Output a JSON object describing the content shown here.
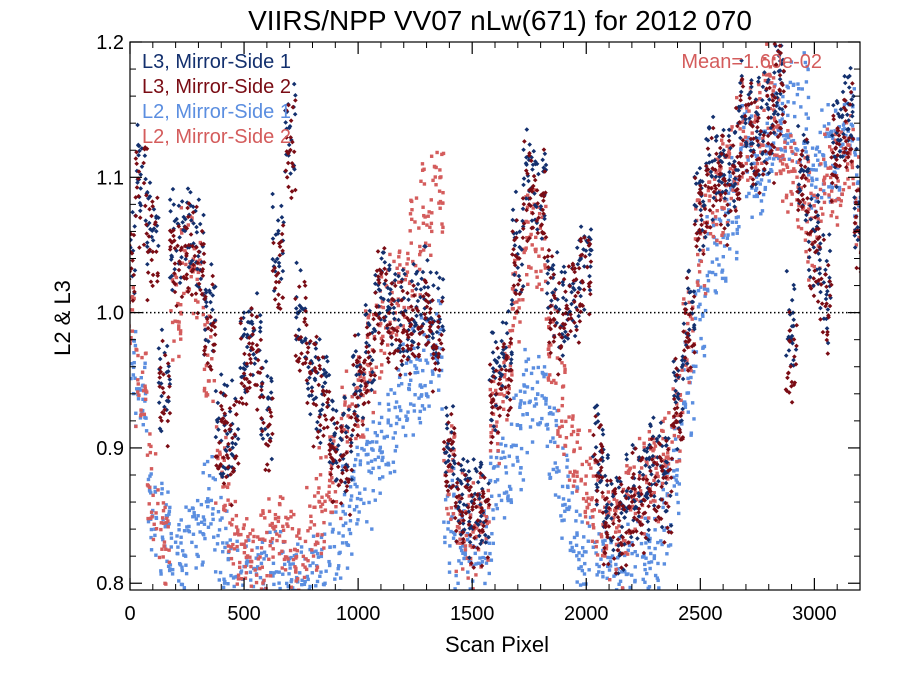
{
  "chart_data": {
    "type": "scatter",
    "title": "VIIRS/NPP VV07 nLw(671) for 2012 070",
    "xlabel": "Scan Pixel",
    "ylabel": "L2 & L3",
    "xlim": [
      0,
      3200
    ],
    "ylim": [
      0.795,
      1.2
    ],
    "xticks": [
      0,
      500,
      1000,
      1500,
      2000,
      2500,
      3000
    ],
    "xtick_labels": [
      "0",
      "500",
      "1000",
      "1500",
      "2000",
      "2500",
      "3000"
    ],
    "yticks": [
      0.8,
      0.9,
      1.0,
      1.1,
      1.2
    ],
    "ytick_labels": [
      "0.8",
      "0.9",
      "1.0",
      "1.1",
      "1.2"
    ],
    "reference_line": {
      "y": 1.0,
      "style": "dotted",
      "color": "#000000"
    },
    "annotation": "Mean=1.60e-02",
    "legend_position": "top-left",
    "series": [
      {
        "name": "L3, Mirror-Side 1",
        "color": "#13306e",
        "marker": "diamond",
        "x": [
          0,
          50,
          100,
          150,
          200,
          250,
          300,
          350,
          400,
          450,
          500,
          550,
          600,
          650,
          700,
          750,
          800,
          850,
          900,
          950,
          1000,
          1050,
          1100,
          1150,
          1200,
          1250,
          1300,
          1350,
          1400,
          1450,
          1500,
          1550,
          1600,
          1650,
          1700,
          1750,
          1800,
          1850,
          1900,
          1950,
          2000,
          2050,
          2100,
          2150,
          2200,
          2250,
          2300,
          2350,
          2400,
          2450,
          2500,
          2550,
          2600,
          2650,
          2700,
          2750,
          2800,
          2850,
          2900,
          2950,
          3000,
          3050,
          3100,
          3150,
          3200
        ],
        "y": [
          1.04,
          1.1,
          1.06,
          0.95,
          1.05,
          1.06,
          1.05,
          1.0,
          0.92,
          0.91,
          0.97,
          0.98,
          0.93,
          1.05,
          1.13,
          1.0,
          0.95,
          0.94,
          0.9,
          0.9,
          0.95,
          0.98,
          1.02,
          1.0,
          1.0,
          1.0,
          1.01,
          0.99,
          0.9,
          0.86,
          0.86,
          0.86,
          0.95,
          0.97,
          1.05,
          1.1,
          1.09,
          1.02,
          1.0,
          1.02,
          1.04,
          0.9,
          0.86,
          0.85,
          0.87,
          0.87,
          0.89,
          0.88,
          0.94,
          1.0,
          1.08,
          1.11,
          1.1,
          1.12,
          1.15,
          1.13,
          1.14,
          1.17,
          0.99,
          1.1,
          1.05,
          1.02,
          1.13,
          1.15,
          1.08
        ]
      },
      {
        "name": "L3, Mirror-Side 2",
        "color": "#7a0c14",
        "marker": "diamond",
        "x": [
          0,
          50,
          100,
          150,
          200,
          250,
          300,
          350,
          400,
          450,
          500,
          550,
          600,
          650,
          700,
          750,
          800,
          850,
          900,
          950,
          1000,
          1050,
          1100,
          1150,
          1200,
          1250,
          1300,
          1350,
          1400,
          1450,
          1500,
          1550,
          1600,
          1650,
          1700,
          1750,
          1800,
          1850,
          1900,
          1950,
          2000,
          2050,
          2100,
          2150,
          2200,
          2250,
          2300,
          2350,
          2400,
          2450,
          2500,
          2550,
          2600,
          2650,
          2700,
          2750,
          2800,
          2850,
          2900,
          2950,
          3000,
          3050,
          3100,
          3150,
          3200
        ],
        "y": [
          1.03,
          1.09,
          1.05,
          0.94,
          1.04,
          1.05,
          1.04,
          0.99,
          0.91,
          0.9,
          0.96,
          0.97,
          0.92,
          1.04,
          1.12,
          0.99,
          0.94,
          0.93,
          0.89,
          0.89,
          0.94,
          0.97,
          1.01,
          0.99,
          0.99,
          0.99,
          1.0,
          0.98,
          0.89,
          0.85,
          0.85,
          0.85,
          0.94,
          0.96,
          1.04,
          1.09,
          1.08,
          1.01,
          0.99,
          1.01,
          1.03,
          0.89,
          0.85,
          0.84,
          0.86,
          0.86,
          0.88,
          0.87,
          0.93,
          0.99,
          1.07,
          1.1,
          1.09,
          1.11,
          1.14,
          1.12,
          1.13,
          1.16,
          0.97,
          1.09,
          1.04,
          1.01,
          1.12,
          1.14,
          1.07
        ]
      },
      {
        "name": "L2, Mirror-Side 1",
        "color": "#5b8ee0",
        "marker": "square",
        "x": [
          0,
          50,
          100,
          150,
          200,
          250,
          300,
          350,
          400,
          450,
          500,
          550,
          600,
          650,
          700,
          750,
          800,
          850,
          900,
          950,
          1000,
          1050,
          1100,
          1150,
          1200,
          1250,
          1300,
          1350,
          1400,
          1450,
          1500,
          1550,
          1600,
          1650,
          1700,
          1750,
          1800,
          1850,
          1900,
          1950,
          2000,
          2050,
          2100,
          2150,
          2200,
          2250,
          2300,
          2350,
          2400,
          2450,
          2500,
          2550,
          2600,
          2650,
          2700,
          2750,
          2800,
          2850,
          2900,
          2950,
          3000,
          3050,
          3100,
          3150,
          3200
        ],
        "y": [
          0.97,
          0.93,
          0.86,
          0.84,
          0.82,
          0.83,
          0.84,
          0.86,
          0.82,
          0.8,
          0.8,
          0.8,
          0.8,
          0.8,
          0.8,
          0.8,
          0.8,
          0.8,
          0.82,
          0.85,
          0.87,
          0.88,
          0.9,
          0.92,
          0.94,
          0.95,
          0.96,
          0.97,
          0.85,
          0.82,
          0.82,
          0.82,
          0.86,
          0.88,
          0.91,
          0.93,
          0.94,
          0.9,
          0.86,
          0.83,
          0.81,
          0.8,
          0.8,
          0.8,
          0.81,
          0.81,
          0.82,
          0.85,
          0.89,
          0.94,
          1.0,
          1.04,
          1.06,
          1.08,
          1.12,
          1.1,
          1.12,
          1.14,
          1.15,
          1.15,
          1.1,
          1.12,
          1.12,
          1.13,
          1.1
        ]
      },
      {
        "name": "L2, Mirror-Side 2",
        "color": "#d45c5c",
        "marker": "square",
        "x": [
          0,
          50,
          100,
          150,
          200,
          250,
          300,
          350,
          400,
          450,
          500,
          550,
          600,
          650,
          700,
          750,
          800,
          850,
          900,
          950,
          1000,
          1050,
          1100,
          1150,
          1200,
          1250,
          1300,
          1350,
          1400,
          1450,
          1500,
          1550,
          1600,
          1650,
          1700,
          1750,
          1800,
          1850,
          1900,
          1950,
          2000,
          2050,
          2100,
          2150,
          2200,
          2250,
          2300,
          2350,
          2400,
          2450,
          2500,
          2550,
          2600,
          2650,
          2700,
          2750,
          2800,
          2850,
          2900,
          2950,
          3000,
          3050,
          3100,
          3150,
          3200
        ],
        "y": [
          1.0,
          0.95,
          0.87,
          0.83,
          1.0,
          1.05,
          1.02,
          0.96,
          0.88,
          0.84,
          0.82,
          0.82,
          0.83,
          0.84,
          0.82,
          0.82,
          0.84,
          0.86,
          0.88,
          0.92,
          0.94,
          0.96,
          0.99,
          1.0,
          1.02,
          1.05,
          1.08,
          1.1,
          0.88,
          0.84,
          0.84,
          0.84,
          0.92,
          0.96,
          1.02,
          1.06,
          1.04,
          0.98,
          0.93,
          0.9,
          0.87,
          0.85,
          0.84,
          0.84,
          0.86,
          0.87,
          0.88,
          0.89,
          0.92,
          0.98,
          1.05,
          1.08,
          1.09,
          1.12,
          1.13,
          1.14,
          1.16,
          1.12,
          1.1,
          1.08,
          1.06,
          1.1,
          1.1,
          1.12,
          1.08
        ]
      }
    ]
  }
}
